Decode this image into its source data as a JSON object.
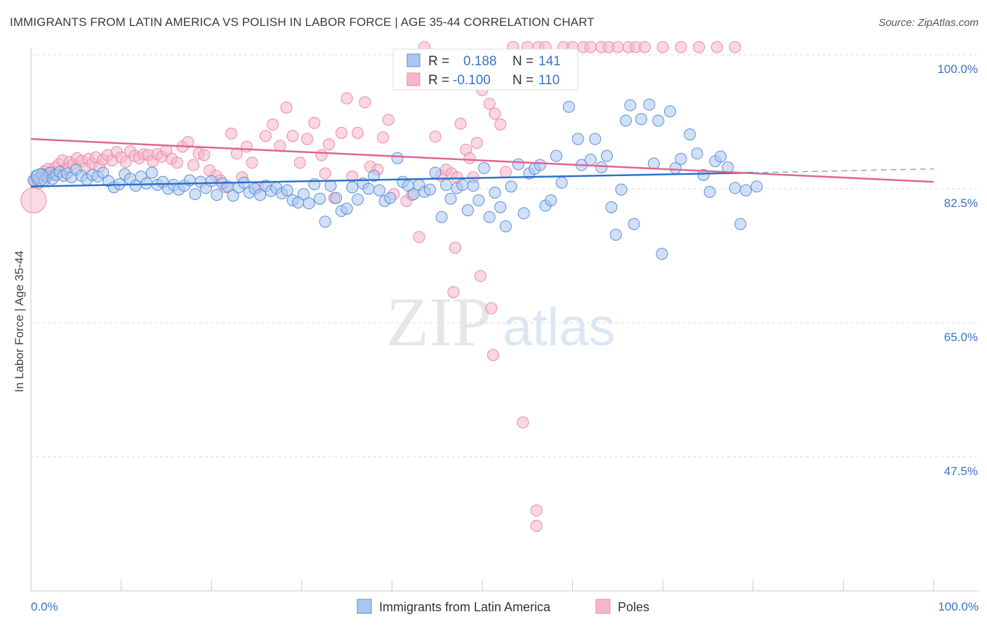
{
  "title": "IMMIGRANTS FROM LATIN AMERICA VS POLISH IN LABOR FORCE | AGE 35-44 CORRELATION CHART",
  "source": "Source: ZipAtlas.com",
  "watermark": {
    "zip": "ZIP",
    "atlas": "atlas"
  },
  "colors": {
    "blue_fill": "#a9c6f0",
    "blue_stroke": "#5b8fd6",
    "blue_line": "#2f6fcc",
    "pink_fill": "#f5b6c9",
    "pink_stroke": "#e88aa8",
    "pink_line": "#e0648f",
    "tick_text": "#3b73c4",
    "grid": "#d9d9d9"
  },
  "stats_box": {
    "rows": [
      {
        "r_label": "R = ",
        "r_value": "0.188",
        "n_label": "N = ",
        "n_value": "141"
      },
      {
        "r_label": "R = ",
        "r_value": "-0.100",
        "n_label": "N = ",
        "n_value": "110"
      }
    ]
  },
  "legend": [
    "Immigrants from Latin America",
    "Poles"
  ],
  "chart_data": {
    "type": "scatter",
    "title": "IMMIGRANTS FROM LATIN AMERICA VS POLISH IN LABOR FORCE | AGE 35-44 CORRELATION CHART",
    "xlabel": "",
    "ylabel": "In Labor Force | Age 35-44",
    "xlim": [
      0,
      100
    ],
    "ylim": [
      30,
      102
    ],
    "x_tick_labels": [
      "0.0%",
      "100.0%"
    ],
    "y_ticks": [
      100,
      82.5,
      65,
      47.5
    ],
    "y_tick_labels": [
      "100.0%",
      "82.5%",
      "65.0%",
      "47.5%"
    ],
    "grid": "horizontal dashed",
    "legend_position": "bottom-center",
    "series": [
      {
        "name": "Immigrants from Latin America",
        "R": 0.188,
        "N": 141,
        "trend": {
          "x": [
            0,
            80,
            100
          ],
          "y": [
            82.8,
            84.6,
            85.1
          ],
          "solid_until": 80
        },
        "points": [
          [
            0.3,
            83.6
          ],
          [
            0.6,
            84.2
          ],
          [
            0.9,
            83.9
          ],
          [
            1.2,
            84.4
          ],
          [
            1.5,
            83.6
          ],
          [
            1.8,
            84.1
          ],
          [
            2.1,
            84.6
          ],
          [
            2.4,
            83.8
          ],
          [
            2.8,
            84.3
          ],
          [
            3.2,
            84.7
          ],
          [
            3.6,
            84.2
          ],
          [
            4.0,
            84.5
          ],
          [
            4.5,
            84.0
          ],
          [
            5.0,
            85.0
          ],
          [
            5.6,
            84.2
          ],
          [
            6.2,
            83.7
          ],
          [
            6.8,
            84.3
          ],
          [
            7.4,
            84.1
          ],
          [
            8.0,
            84.6
          ],
          [
            8.6,
            83.5
          ],
          [
            9.2,
            82.7
          ],
          [
            9.8,
            83.1
          ],
          [
            10.4,
            84.4
          ],
          [
            11.0,
            83.8
          ],
          [
            11.6,
            82.9
          ],
          [
            12.2,
            84.1
          ],
          [
            12.8,
            83.2
          ],
          [
            13.4,
            84.6
          ],
          [
            14.0,
            83.0
          ],
          [
            14.6,
            83.4
          ],
          [
            15.2,
            82.5
          ],
          [
            15.8,
            83.0
          ],
          [
            16.4,
            82.4
          ],
          [
            17.0,
            82.9
          ],
          [
            17.6,
            83.6
          ],
          [
            18.2,
            81.8
          ],
          [
            18.8,
            83.4
          ],
          [
            19.4,
            82.6
          ],
          [
            20.0,
            83.5
          ],
          [
            20.6,
            81.7
          ],
          [
            21.2,
            83.2
          ],
          [
            21.8,
            82.8
          ],
          [
            22.4,
            81.6
          ],
          [
            23.0,
            82.7
          ],
          [
            23.6,
            83.3
          ],
          [
            24.2,
            82.0
          ],
          [
            24.8,
            82.5
          ],
          [
            25.4,
            81.7
          ],
          [
            26.0,
            82.9
          ],
          [
            26.6,
            82.2
          ],
          [
            27.2,
            82.6
          ],
          [
            27.8,
            81.9
          ],
          [
            28.4,
            82.3
          ],
          [
            29.0,
            81.0
          ],
          [
            29.6,
            80.7
          ],
          [
            30.2,
            81.8
          ],
          [
            30.8,
            80.6
          ],
          [
            31.4,
            83.1
          ],
          [
            32.0,
            81.2
          ],
          [
            32.6,
            78.2
          ],
          [
            33.2,
            82.9
          ],
          [
            33.8,
            81.3
          ],
          [
            34.4,
            79.6
          ],
          [
            35.0,
            79.9
          ],
          [
            35.6,
            82.7
          ],
          [
            36.2,
            81.1
          ],
          [
            36.8,
            83.2
          ],
          [
            37.4,
            82.5
          ],
          [
            38.0,
            84.2
          ],
          [
            38.6,
            82.3
          ],
          [
            39.2,
            80.9
          ],
          [
            39.8,
            81.3
          ],
          [
            40.6,
            86.5
          ],
          [
            41.2,
            83.4
          ],
          [
            41.8,
            82.9
          ],
          [
            42.4,
            81.8
          ],
          [
            43.0,
            83.0
          ],
          [
            43.6,
            82.1
          ],
          [
            44.2,
            82.4
          ],
          [
            44.8,
            84.6
          ],
          [
            45.5,
            78.8
          ],
          [
            46.0,
            83.0
          ],
          [
            46.5,
            81.2
          ],
          [
            47.2,
            82.6
          ],
          [
            47.8,
            83.0
          ],
          [
            48.4,
            79.7
          ],
          [
            49.0,
            82.9
          ],
          [
            49.6,
            81.0
          ],
          [
            50.2,
            85.2
          ],
          [
            50.8,
            78.8
          ],
          [
            51.4,
            82.0
          ],
          [
            52.0,
            80.1
          ],
          [
            52.6,
            77.6
          ],
          [
            53.2,
            82.8
          ],
          [
            54.0,
            85.7
          ],
          [
            54.6,
            79.3
          ],
          [
            55.2,
            84.5
          ],
          [
            55.8,
            85.1
          ],
          [
            56.4,
            85.6
          ],
          [
            57.0,
            80.3
          ],
          [
            57.6,
            81.0
          ],
          [
            58.2,
            86.8
          ],
          [
            58.8,
            83.3
          ],
          [
            59.6,
            93.2
          ],
          [
            60.6,
            89.0
          ],
          [
            61.0,
            85.6
          ],
          [
            62.0,
            86.3
          ],
          [
            62.5,
            89.0
          ],
          [
            63.2,
            85.3
          ],
          [
            63.8,
            86.8
          ],
          [
            64.3,
            80.1
          ],
          [
            64.8,
            76.5
          ],
          [
            65.4,
            82.4
          ],
          [
            65.9,
            91.4
          ],
          [
            66.4,
            93.4
          ],
          [
            66.8,
            77.9
          ],
          [
            67.6,
            91.6
          ],
          [
            68.5,
            93.5
          ],
          [
            69.0,
            85.8
          ],
          [
            69.5,
            91.4
          ],
          [
            69.9,
            74.0
          ],
          [
            70.8,
            92.6
          ],
          [
            71.4,
            85.2
          ],
          [
            72.0,
            86.4
          ],
          [
            73.0,
            89.6
          ],
          [
            73.8,
            87.1
          ],
          [
            74.5,
            84.3
          ],
          [
            75.2,
            82.1
          ],
          [
            75.8,
            86.1
          ],
          [
            76.4,
            86.7
          ],
          [
            77.2,
            85.3
          ],
          [
            78.0,
            82.6
          ],
          [
            78.6,
            77.9
          ],
          [
            79.2,
            82.3
          ],
          [
            80.4,
            82.8
          ]
        ]
      },
      {
        "name": "Poles",
        "R": -0.1,
        "N": 110,
        "trend": {
          "x": [
            0,
            100
          ],
          "y": [
            89.0,
            83.4
          ]
        },
        "points": [
          [
            0.4,
            83.6
          ],
          [
            0.8,
            83.2
          ],
          [
            1.1,
            84.0
          ],
          [
            1.5,
            84.8
          ],
          [
            1.9,
            85.1
          ],
          [
            2.3,
            84.6
          ],
          [
            2.7,
            85.3
          ],
          [
            3.1,
            85.7
          ],
          [
            3.5,
            86.2
          ],
          [
            3.9,
            85.1
          ],
          [
            4.3,
            86.0
          ],
          [
            4.7,
            85.7
          ],
          [
            5.1,
            86.5
          ],
          [
            5.6,
            86.1
          ],
          [
            6.0,
            85.2
          ],
          [
            6.4,
            86.4
          ],
          [
            6.8,
            85.8
          ],
          [
            7.2,
            86.6
          ],
          [
            7.6,
            85.4
          ],
          [
            8.0,
            86.3
          ],
          [
            8.5,
            86.9
          ],
          [
            9.0,
            86.2
          ],
          [
            9.5,
            87.3
          ],
          [
            10.0,
            86.6
          ],
          [
            10.5,
            86.0
          ],
          [
            11.0,
            87.4
          ],
          [
            11.5,
            86.8
          ],
          [
            12.0,
            86.5
          ],
          [
            12.5,
            87.0
          ],
          [
            13.0,
            86.9
          ],
          [
            13.5,
            86.1
          ],
          [
            14.0,
            87.0
          ],
          [
            14.5,
            86.7
          ],
          [
            15.0,
            87.5
          ],
          [
            15.6,
            86.4
          ],
          [
            16.2,
            85.9
          ],
          [
            16.8,
            88.0
          ],
          [
            17.4,
            88.6
          ],
          [
            18.0,
            85.6
          ],
          [
            18.6,
            87.1
          ],
          [
            19.2,
            86.9
          ],
          [
            19.8,
            84.9
          ],
          [
            20.5,
            84.2
          ],
          [
            21.0,
            83.6
          ],
          [
            21.6,
            82.7
          ],
          [
            22.2,
            89.7
          ],
          [
            22.8,
            87.1
          ],
          [
            23.4,
            84.0
          ],
          [
            23.9,
            88.0
          ],
          [
            24.5,
            85.9
          ],
          [
            25.2,
            82.7
          ],
          [
            26.0,
            89.4
          ],
          [
            26.8,
            90.9
          ],
          [
            27.6,
            88.1
          ],
          [
            28.3,
            93.1
          ],
          [
            29.0,
            89.4
          ],
          [
            29.8,
            85.9
          ],
          [
            30.6,
            89.0
          ],
          [
            31.4,
            91.1
          ],
          [
            32.2,
            86.9
          ],
          [
            32.6,
            84.5
          ],
          [
            33.0,
            88.3
          ],
          [
            33.6,
            81.3
          ],
          [
            34.4,
            89.8
          ],
          [
            35.0,
            94.3
          ],
          [
            35.6,
            84.1
          ],
          [
            36.2,
            89.8
          ],
          [
            37.0,
            93.8
          ],
          [
            37.6,
            85.4
          ],
          [
            38.4,
            85.0
          ],
          [
            39.0,
            89.2
          ],
          [
            39.6,
            91.5
          ],
          [
            40.2,
            81.8
          ],
          [
            41.0,
            97.5
          ],
          [
            41.6,
            80.9
          ],
          [
            42.2,
            81.7
          ],
          [
            43.0,
            76.2
          ],
          [
            43.6,
            101.0
          ],
          [
            44.2,
            97.8
          ],
          [
            44.8,
            89.3
          ],
          [
            45.4,
            84.2
          ],
          [
            46.0,
            85.0
          ],
          [
            46.6,
            84.5
          ],
          [
            47.2,
            84.0
          ],
          [
            47.6,
            91.0
          ],
          [
            48.2,
            87.6
          ],
          [
            48.6,
            86.5
          ],
          [
            49.4,
            88.5
          ],
          [
            50.0,
            95.4
          ],
          [
            50.8,
            93.6
          ],
          [
            51.4,
            92.3
          ],
          [
            52.0,
            90.9
          ],
          [
            52.6,
            84.7
          ],
          [
            53.4,
            101.0
          ],
          [
            54.0,
            97.5
          ],
          [
            55.0,
            101.0
          ],
          [
            56.2,
            101.0
          ],
          [
            57.0,
            101.0
          ],
          [
            59.0,
            101.0
          ],
          [
            60.0,
            101.0
          ],
          [
            61.2,
            101.0
          ],
          [
            62.0,
            101.0
          ],
          [
            63.2,
            101.0
          ],
          [
            64.0,
            101.0
          ],
          [
            65.0,
            101.0
          ],
          [
            66.2,
            101.0
          ],
          [
            67.0,
            101.0
          ],
          [
            68.0,
            101.0
          ],
          [
            70.0,
            101.0
          ],
          [
            72.0,
            101.0
          ],
          [
            74.0,
            101.0
          ],
          [
            76.0,
            101.0
          ],
          [
            78.0,
            101.0
          ]
        ]
      }
    ]
  },
  "pink_outliers": [
    [
      49.0,
      84.0
    ],
    [
      47.0,
      74.8
    ],
    [
      49.8,
      71.1
    ],
    [
      46.8,
      69.0
    ],
    [
      51.0,
      66.9
    ],
    [
      51.2,
      60.8
    ],
    [
      54.5,
      52.0
    ],
    [
      56.0,
      40.5
    ],
    [
      56.0,
      38.5
    ]
  ]
}
